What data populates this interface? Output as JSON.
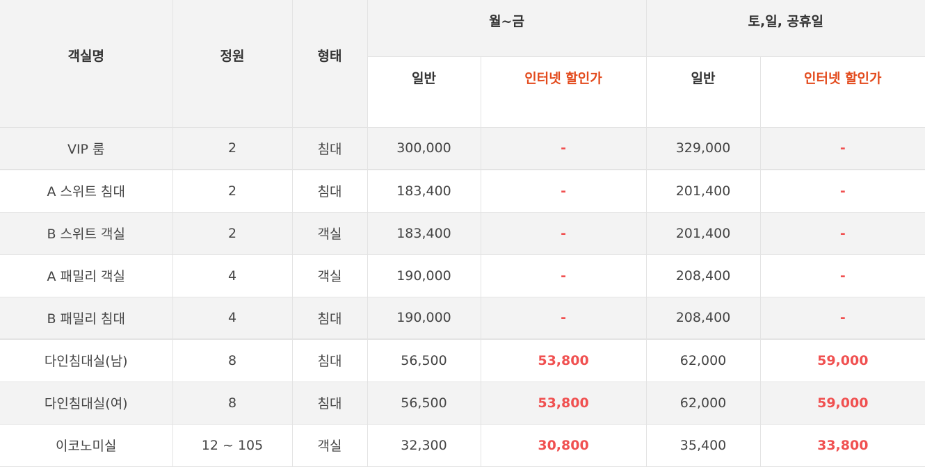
{
  "headers": {
    "room": "객실명",
    "capacity": "정원",
    "type": "형태",
    "weekday": "월~금",
    "weekend": "토,일, 공휴일",
    "regular": "일반",
    "online": "인터넷 할인가"
  },
  "rows": [
    {
      "room": "VIP 룸",
      "capacity": "2",
      "type": "침대",
      "wd_regular": "300,000",
      "wd_online": "-",
      "we_regular": "329,000",
      "we_online": "-"
    },
    {
      "room": "A 스위트 침대",
      "capacity": "2",
      "type": "침대",
      "wd_regular": "183,400",
      "wd_online": "-",
      "we_regular": "201,400",
      "we_online": "-"
    },
    {
      "room": "B 스위트 객실",
      "capacity": "2",
      "type": "객실",
      "wd_regular": "183,400",
      "wd_online": "-",
      "we_regular": "201,400",
      "we_online": "-"
    },
    {
      "room": "A 패밀리 객실",
      "capacity": "4",
      "type": "객실",
      "wd_regular": "190,000",
      "wd_online": "-",
      "we_regular": "208,400",
      "we_online": "-"
    },
    {
      "room": "B 패밀리 침대",
      "capacity": "4",
      "type": "침대",
      "wd_regular": "190,000",
      "wd_online": "-",
      "we_regular": "208,400",
      "we_online": "-"
    },
    {
      "room": "다인침대실(남)",
      "capacity": "8",
      "type": "침대",
      "wd_regular": "56,500",
      "wd_online": "53,800",
      "we_regular": "62,000",
      "we_online": "59,000"
    },
    {
      "room": "다인침대실(여)",
      "capacity": "8",
      "type": "침대",
      "wd_regular": "56,500",
      "wd_online": "53,800",
      "we_regular": "62,000",
      "we_online": "59,000"
    },
    {
      "room": "이코노미실",
      "capacity": "12 ~ 105",
      "type": "객실",
      "wd_regular": "32,300",
      "wd_online": "30,800",
      "we_regular": "35,400",
      "we_online": "33,800"
    }
  ],
  "colors": {
    "header_bg": "#f3f3f3",
    "promo_header": "#e34a1c",
    "promo_value": "#f05050"
  }
}
